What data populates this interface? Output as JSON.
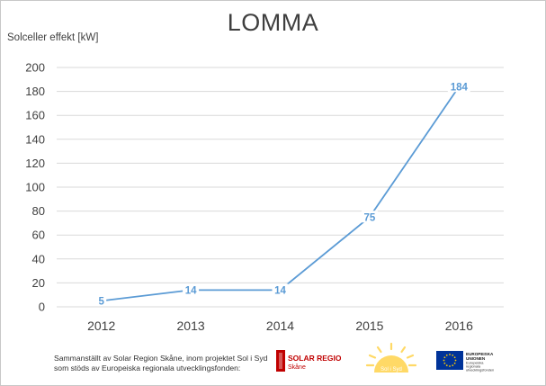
{
  "chart_data": {
    "type": "line",
    "title": "LOMMA",
    "ylabel": "Solceller effekt [kW]",
    "xlabel": "",
    "categories": [
      "2012",
      "2013",
      "2014",
      "2015",
      "2016"
    ],
    "series": [
      {
        "values": [
          5,
          14,
          14,
          75,
          184
        ],
        "color": "#5b9bd5"
      }
    ],
    "ylim": [
      0,
      200
    ],
    "yticks": [
      "0",
      "20",
      "40",
      "60",
      "80",
      "100",
      "120",
      "140",
      "160",
      "180",
      "200"
    ],
    "data_labels": [
      "5",
      "14",
      "14",
      "75",
      "184"
    ],
    "grid": true
  },
  "footer": {
    "line1": "Sammanställt av Solar Region Skåne, inom projektet Sol i Syd",
    "line2": "som stöds av Europeiska regionala utvecklingsfonden:"
  },
  "logos": {
    "solar_region": "SOLAR REGION",
    "solar_region_sub": "Skåne",
    "sol_i_syd": "Sol i Syd",
    "eu_line1": "EUROPEISKA",
    "eu_line2": "UNIONEN",
    "eu_line3": "Europeiska",
    "eu_line4": "regionala",
    "eu_line5": "utvecklingsfonden"
  },
  "colors": {
    "line": "#5b9bd5",
    "grid": "#d9d9d9",
    "text": "#404040",
    "solar_red": "#c00000",
    "eu_blue": "#003399",
    "eu_star": "#ffcc00",
    "sun": "#ffd966"
  }
}
